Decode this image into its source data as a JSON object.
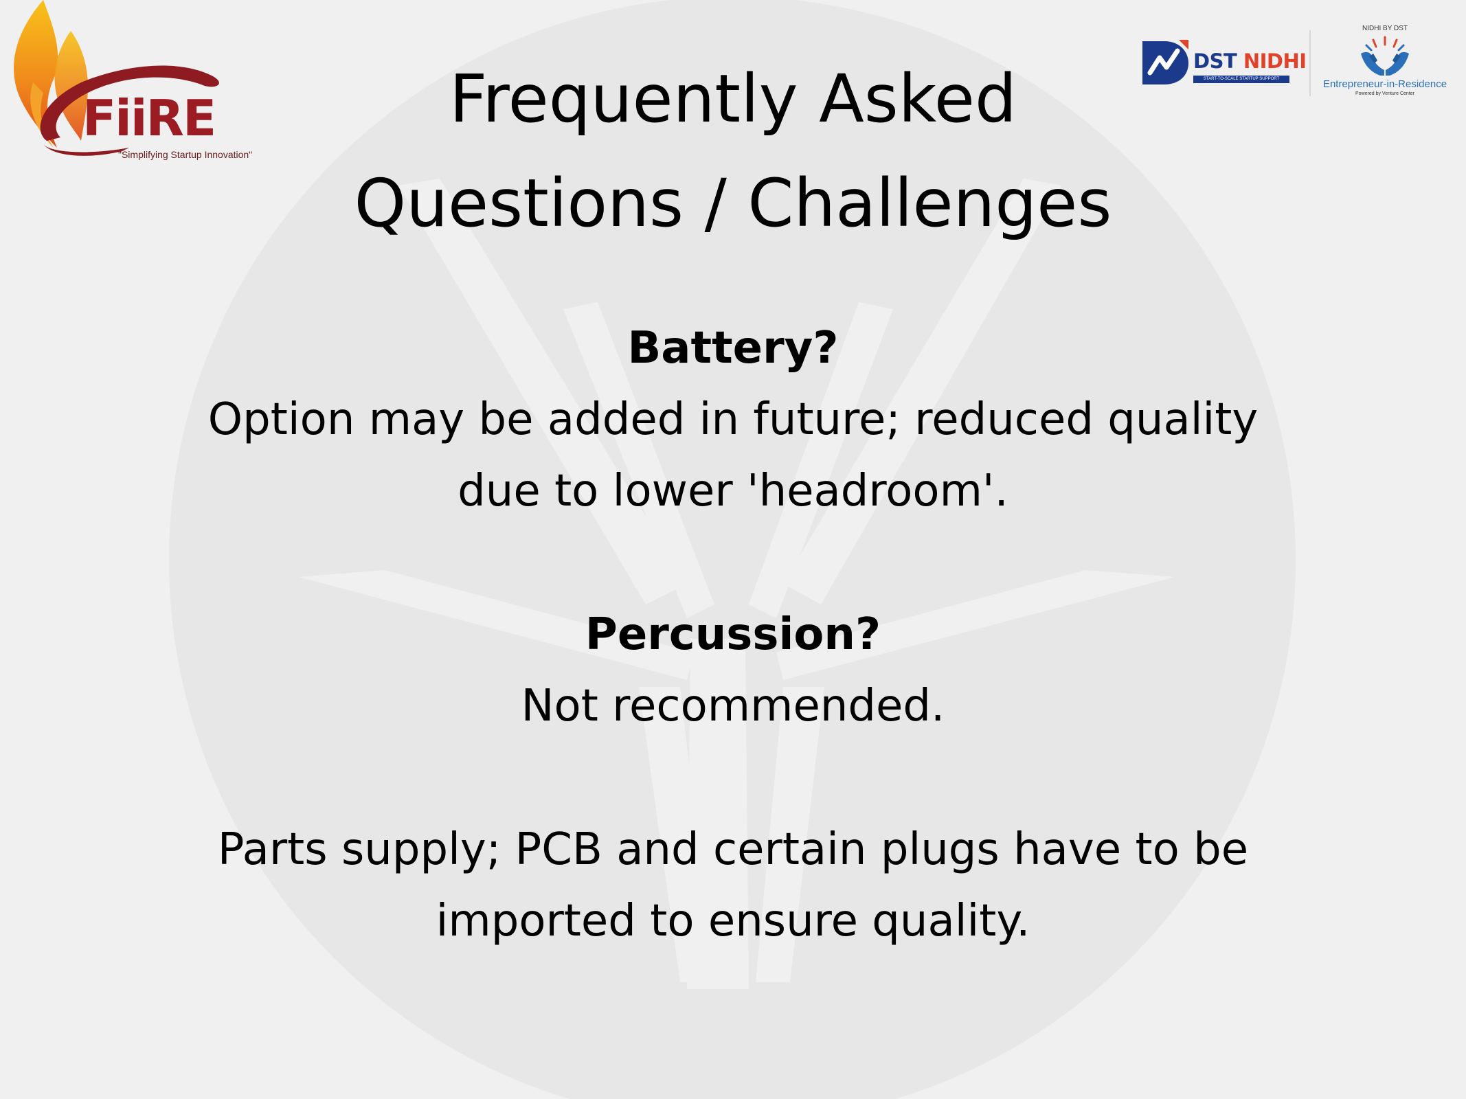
{
  "logos": {
    "fiire": {
      "name": "FiiRE",
      "tagline": "\"Simplifying Startup Innovation\""
    },
    "dst_nidhi": {
      "brand_dst": "DST",
      "brand_nidhi": "NIDHI",
      "subtitle": "START-TO-SCALE STARTUP SUPPORT"
    },
    "eir": {
      "top_label": "NIDHI BY DST",
      "title": "Entrepreneur-in-Residence",
      "powered_by": "Powered by Venture Center"
    }
  },
  "slide": {
    "title_line1": "Frequently Asked",
    "title_line2": "Questions / Challenges",
    "items": [
      {
        "question": "Battery?",
        "answer_line1": "Option may be added in future; reduced quality",
        "answer_line2": "due to lower 'headroom'."
      },
      {
        "question": "Percussion?",
        "answer_line1": "Not recommended."
      },
      {
        "answer_line1": "Parts supply; PCB and certain plugs have to be",
        "answer_line2": "imported to ensure quality."
      }
    ]
  },
  "colors": {
    "background": "#f0f0f0",
    "watermark": "#e6e6e6",
    "fiire_red": "#9b1c22",
    "flame_orange": "#f08a1c",
    "dst_blue": "#1c3a8c",
    "dst_red": "#e0422a",
    "eir_blue": "#2a6fb8"
  }
}
